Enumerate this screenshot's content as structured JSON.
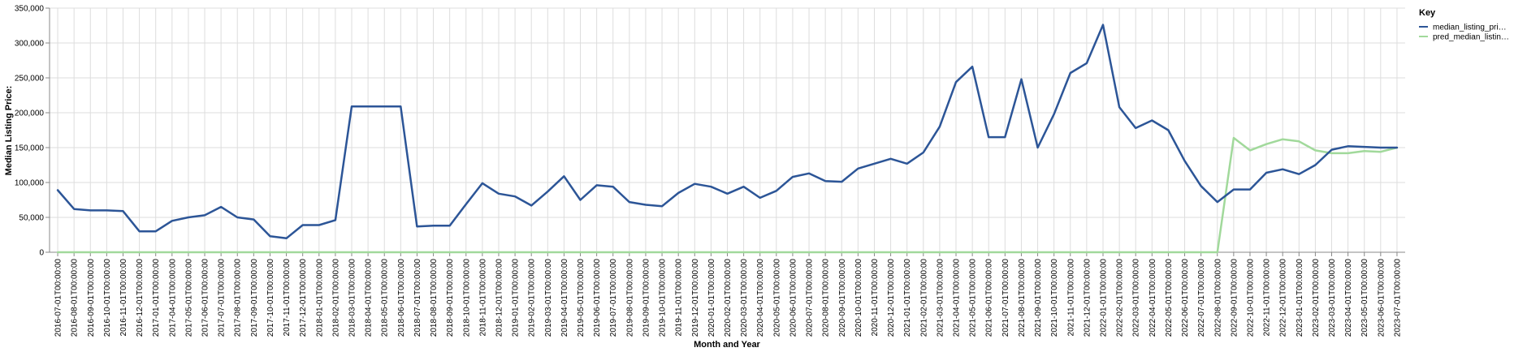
{
  "chart_data": {
    "type": "line",
    "xlabel": "Month and Year",
    "ylabel": "Median Listing Price:",
    "legend_title": "Key",
    "legend_position": "top-right",
    "grid": true,
    "ylim": [
      0,
      350000
    ],
    "y_ticks": [
      "0",
      "50,000",
      "100,000",
      "150,000",
      "200,000",
      "250,000",
      "300,000",
      "350,000"
    ],
    "x": [
      "2016-07-01T00:00:00",
      "2016-08-01T00:00:00",
      "2016-09-01T00:00:00",
      "2016-10-01T00:00:00",
      "2016-11-01T00:00:00",
      "2016-12-01T00:00:00",
      "2017-01-01T00:00:00",
      "2017-04-01T00:00:00",
      "2017-05-01T00:00:00",
      "2017-06-01T00:00:00",
      "2017-07-01T00:00:00",
      "2017-08-01T00:00:00",
      "2017-09-01T00:00:00",
      "2017-10-01T00:00:00",
      "2017-11-01T00:00:00",
      "2017-12-01T00:00:00",
      "2018-01-01T00:00:00",
      "2018-02-01T00:00:00",
      "2018-03-01T00:00:00",
      "2018-04-01T00:00:00",
      "2018-05-01T00:00:00",
      "2018-06-01T00:00:00",
      "2018-07-01T00:00:00",
      "2018-08-01T00:00:00",
      "2018-09-01T00:00:00",
      "2018-10-01T00:00:00",
      "2018-11-01T00:00:00",
      "2018-12-01T00:00:00",
      "2019-01-01T00:00:00",
      "2019-02-01T00:00:00",
      "2019-03-01T00:00:00",
      "2019-04-01T00:00:00",
      "2019-05-01T00:00:00",
      "2019-06-01T00:00:00",
      "2019-07-01T00:00:00",
      "2019-08-01T00:00:00",
      "2019-09-01T00:00:00",
      "2019-10-01T00:00:00",
      "2019-11-01T00:00:00",
      "2019-12-01T00:00:00",
      "2020-01-01T00:00:00",
      "2020-02-01T00:00:00",
      "2020-03-01T00:00:00",
      "2020-04-01T00:00:00",
      "2020-05-01T00:00:00",
      "2020-06-01T00:00:00",
      "2020-07-01T00:00:00",
      "2020-08-01T00:00:00",
      "2020-09-01T00:00:00",
      "2020-10-01T00:00:00",
      "2020-11-01T00:00:00",
      "2020-12-01T00:00:00",
      "2021-01-01T00:00:00",
      "2021-02-01T00:00:00",
      "2021-03-01T00:00:00",
      "2021-04-01T00:00:00",
      "2021-05-01T00:00:00",
      "2021-06-01T00:00:00",
      "2021-07-01T00:00:00",
      "2021-08-01T00:00:00",
      "2021-09-01T00:00:00",
      "2021-10-01T00:00:00",
      "2021-11-01T00:00:00",
      "2021-12-01T00:00:00",
      "2022-01-01T00:00:00",
      "2022-02-01T00:00:00",
      "2022-03-01T00:00:00",
      "2022-04-01T00:00:00",
      "2022-05-01T00:00:00",
      "2022-06-01T00:00:00",
      "2022-07-01T00:00:00",
      "2022-08-01T00:00:00",
      "2022-09-01T00:00:00",
      "2022-10-01T00:00:00",
      "2022-11-01T00:00:00",
      "2022-12-01T00:00:00",
      "2023-01-01T00:00:00",
      "2023-02-01T00:00:00",
      "2023-03-01T00:00:00",
      "2023-04-01T00:00:00",
      "2023-05-01T00:00:00",
      "2023-06-01T00:00:00",
      "2023-07-01T00:00:00"
    ],
    "series": [
      {
        "name": "median_listing_pri…",
        "color": "#2c5597",
        "values": [
          89000,
          62000,
          60000,
          60000,
          59000,
          30000,
          30000,
          45000,
          50000,
          53000,
          65000,
          50000,
          47000,
          23000,
          20000,
          39000,
          39000,
          46000,
          209000,
          209000,
          209000,
          209000,
          37000,
          38000,
          38000,
          69000,
          99000,
          84000,
          80000,
          67000,
          87000,
          109000,
          75000,
          96000,
          94000,
          72000,
          68000,
          66000,
          85000,
          98000,
          94000,
          84000,
          94000,
          78000,
          88000,
          108000,
          113000,
          102000,
          101000,
          120000,
          127000,
          134000,
          127000,
          143000,
          180000,
          244000,
          266000,
          165000,
          165000,
          248000,
          150000,
          198000,
          257000,
          271000,
          326000,
          208000,
          178000,
          189000,
          175000,
          131000,
          95000,
          72000,
          90000,
          90000,
          114000,
          119000,
          112000,
          125000,
          147000,
          152000,
          151000,
          150000,
          150000
        ]
      },
      {
        "name": "pred_median_listin…",
        "color": "#a1d99b",
        "values": [
          0,
          0,
          0,
          0,
          0,
          0,
          0,
          0,
          0,
          0,
          0,
          0,
          0,
          0,
          0,
          0,
          0,
          0,
          0,
          0,
          0,
          0,
          0,
          0,
          0,
          0,
          0,
          0,
          0,
          0,
          0,
          0,
          0,
          0,
          0,
          0,
          0,
          0,
          0,
          0,
          0,
          0,
          0,
          0,
          0,
          0,
          0,
          0,
          0,
          0,
          0,
          0,
          0,
          0,
          0,
          0,
          0,
          0,
          0,
          0,
          0,
          0,
          0,
          0,
          0,
          0,
          0,
          0,
          0,
          0,
          0,
          0,
          164000,
          146000,
          155000,
          162000,
          159000,
          146000,
          142000,
          142000,
          145000,
          144000,
          150000
        ]
      }
    ]
  }
}
